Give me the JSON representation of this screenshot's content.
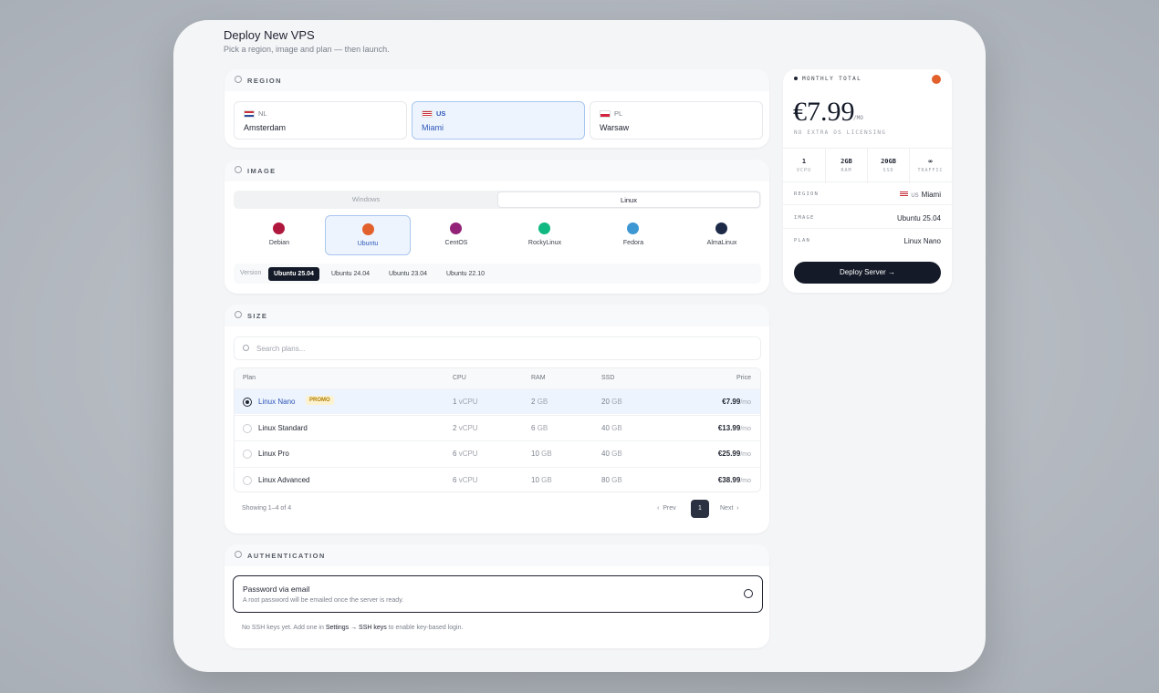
{
  "header": {
    "title": "Deploy New VPS",
    "subtitle": "Pick a region, image and plan — then launch."
  },
  "region": {
    "label": "REGION",
    "options": [
      {
        "code": "NL",
        "city": "Amsterdam"
      },
      {
        "code": "US",
        "city": "Miami"
      },
      {
        "code": "PL",
        "city": "Warsaw"
      }
    ]
  },
  "image": {
    "label": "IMAGE",
    "tabs": [
      "Windows",
      "Linux"
    ],
    "distros": [
      "Debian",
      "Ubuntu",
      "CentOS",
      "RockyLinux",
      "Fedora",
      "AlmaLinux"
    ],
    "version_label": "Version",
    "versions": [
      "Ubuntu 25.04",
      "Ubuntu 24.04",
      "Ubuntu 23.04",
      "Ubuntu 22.10"
    ]
  },
  "size": {
    "label": "SIZE",
    "search_placeholder": "Search plans...",
    "columns": [
      "Plan",
      "CPU",
      "RAM",
      "SSD",
      "Price"
    ],
    "promo": "PROMO",
    "rows": [
      {
        "plan": "Linux Nano",
        "cpu": "1",
        "cpu_unit": "vCPU",
        "ram": "2",
        "ram_unit": "GB",
        "ssd": "20",
        "ssd_unit": "GB",
        "price": "€7.99",
        "per": "/mo"
      },
      {
        "plan": "Linux Standard",
        "cpu": "2",
        "cpu_unit": "vCPU",
        "ram": "6",
        "ram_unit": "GB",
        "ssd": "40",
        "ssd_unit": "GB",
        "price": "€13.99",
        "per": "/mo"
      },
      {
        "plan": "Linux Pro",
        "cpu": "6",
        "cpu_unit": "vCPU",
        "ram": "10",
        "ram_unit": "GB",
        "ssd": "40",
        "ssd_unit": "GB",
        "price": "€25.99",
        "per": "/mo"
      },
      {
        "plan": "Linux Advanced",
        "cpu": "6",
        "cpu_unit": "vCPU",
        "ram": "10",
        "ram_unit": "GB",
        "ssd": "80",
        "ssd_unit": "GB",
        "price": "€38.99",
        "per": "/mo"
      }
    ],
    "showing": "Showing 1–4 of 4",
    "prev": "Prev",
    "page": "1",
    "next": "Next"
  },
  "auth": {
    "label": "AUTHENTICATION",
    "option_title": "Password via email",
    "option_desc": "A root password will be emailed once the server is ready.",
    "note_pre": "No SSH keys yet. Add one in",
    "note_link": "Settings → SSH keys",
    "note_post": "to enable key-based login."
  },
  "summary": {
    "label": "MONTHLY TOTAL",
    "price": "€7.99",
    "per": "/MO",
    "note": "NO EXTRA OS LICENSING",
    "specs": [
      {
        "value": "1",
        "label": "VCPU"
      },
      {
        "value": "2GB",
        "label": "RAM"
      },
      {
        "value": "20GB",
        "label": "SSD"
      },
      {
        "value": "∞",
        "label": "TRAFFIC"
      }
    ],
    "rows": [
      {
        "key": "REGION",
        "code": "US",
        "value": "Miami"
      },
      {
        "key": "IMAGE",
        "value": "Ubuntu 25.04"
      },
      {
        "key": "PLAN",
        "value": "Linux Nano"
      }
    ],
    "button": "Deploy Server"
  }
}
